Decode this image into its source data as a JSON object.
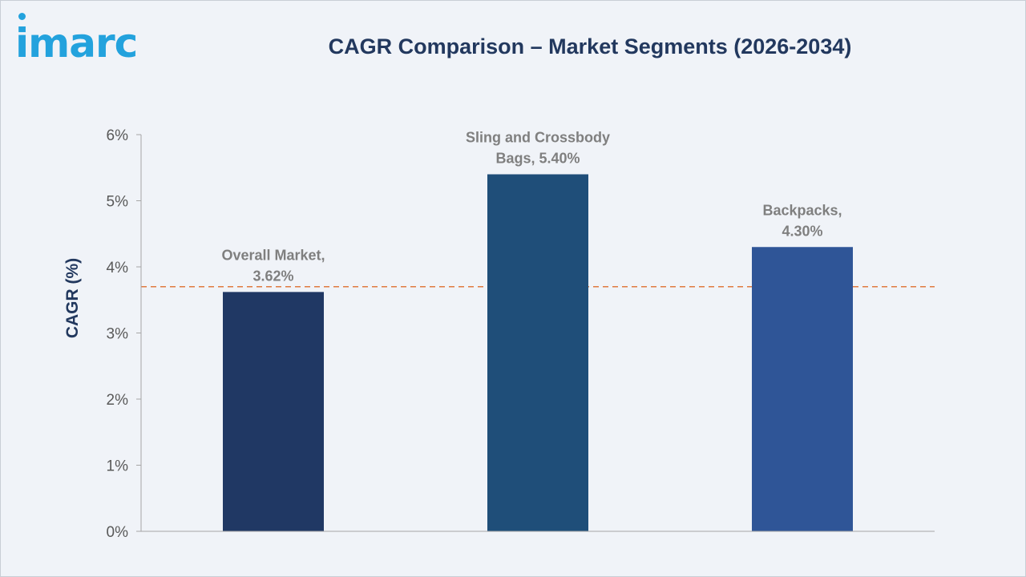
{
  "header": {
    "logo_text": "imarc",
    "title": "CAGR Comparison – Market Segments (2026-2034)"
  },
  "colors": {
    "background": "#f0f3f8",
    "title": "#22385e",
    "logo": "#23a2dd",
    "reference_line": "#e07a3f",
    "axis": "#a6a6a6"
  },
  "chart_data": {
    "type": "bar",
    "categories": [
      "Overall Market",
      "Sling and Crossbody Bags",
      "Backpacks"
    ],
    "values": [
      3.62,
      5.4,
      4.3
    ],
    "data_labels": [
      [
        "Overall Market,",
        "3.62%"
      ],
      [
        "Sling and Crossbody",
        "Bags, 5.40%"
      ],
      [
        "Backpacks,",
        "4.30%"
      ]
    ],
    "bar_colors": [
      "#203864",
      "#1f4e79",
      "#2f5597"
    ],
    "ylabel": "CAGR (%)",
    "ylim": [
      0,
      6
    ],
    "yticks": [
      0,
      1,
      2,
      3,
      4,
      5,
      6
    ],
    "ytick_labels": [
      "0%",
      "1%",
      "2%",
      "3%",
      "4%",
      "5%",
      "6%"
    ],
    "reference_line": {
      "value": 3.7,
      "style": "dashed"
    },
    "grid": false,
    "legend": "none"
  }
}
